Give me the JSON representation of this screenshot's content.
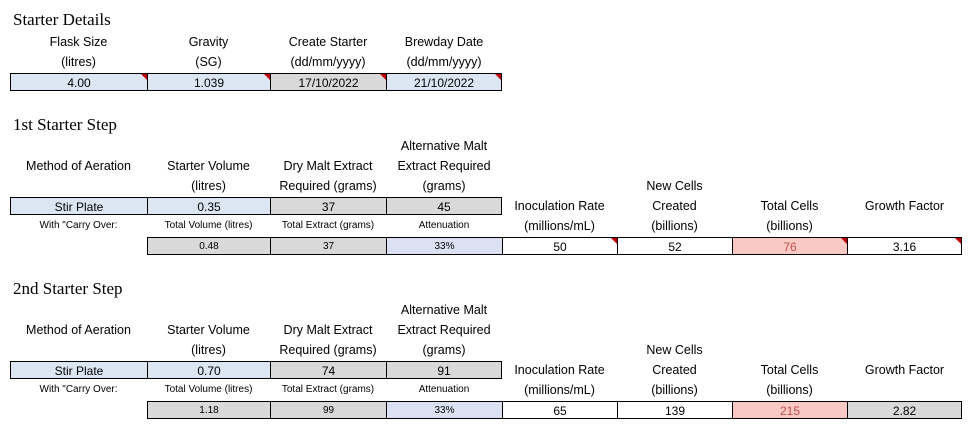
{
  "starter_details": {
    "title": "Starter Details",
    "labels": {
      "flask_size": [
        "Flask Size",
        "(litres)"
      ],
      "gravity": [
        "Gravity",
        "(SG)"
      ],
      "create_starter": [
        "Create Starter",
        "(dd/mm/yyyy)"
      ],
      "brewday_date": [
        "Brewday Date",
        "(dd/mm/yyyy)"
      ]
    },
    "values": {
      "flask_size": "4.00",
      "gravity": "1.039",
      "create_starter": "17/10/2022",
      "brewday_date": "21/10/2022"
    }
  },
  "step1": {
    "title": "1st Starter Step",
    "labels": {
      "method": "Method of Aeration",
      "starter_volume": [
        "Starter Volume",
        "(litres)"
      ],
      "dme": [
        "Dry Malt Extract",
        "Required (grams)"
      ],
      "alt_malt": [
        "Alternative Malt",
        "Extract Required",
        "(grams)"
      ],
      "inoculation": [
        "Inoculation Rate",
        "(millions/mL)"
      ],
      "new_cells": [
        "New Cells",
        "Created",
        "(billions)"
      ],
      "total_cells": [
        "Total Cells",
        "(billions)"
      ],
      "growth_factor": "Growth Factor",
      "carry_over": "With \"Carry Over:",
      "total_volume": "Total Volume (litres)",
      "total_extract": "Total Extract (grams)",
      "attenuation": "Attenuation"
    },
    "values": {
      "method": "Stir Plate",
      "starter_volume": "0.35",
      "dme": "37",
      "alt_malt": "45",
      "total_volume": "0.48",
      "total_extract": "37",
      "attenuation": "33%",
      "inoculation": "50",
      "new_cells": "52",
      "total_cells": "76",
      "growth_factor": "3.16"
    }
  },
  "step2": {
    "title": "2nd Starter Step",
    "labels": {
      "method": "Method of Aeration",
      "starter_volume": [
        "Starter Volume",
        "(litres)"
      ],
      "dme": [
        "Dry Malt Extract",
        "Required (grams)"
      ],
      "alt_malt": [
        "Alternative Malt",
        "Extract Required",
        "(grams)"
      ],
      "inoculation": [
        "Inoculation Rate",
        "(millions/mL)"
      ],
      "new_cells": [
        "New Cells",
        "Created",
        "(billions)"
      ],
      "total_cells": [
        "Total Cells",
        "(billions)"
      ],
      "growth_factor": "Growth Factor",
      "carry_over": "With \"Carry Over:",
      "total_volume": "Total Volume (litres)",
      "total_extract": "Total Extract (grams)",
      "attenuation": "Attenuation"
    },
    "values": {
      "method": "Stir Plate",
      "starter_volume": "0.70",
      "dme": "74",
      "alt_malt": "91",
      "total_volume": "1.18",
      "total_extract": "99",
      "attenuation": "33%",
      "inoculation": "65",
      "new_cells": "139",
      "total_cells": "215",
      "growth_factor": "2.82"
    }
  }
}
